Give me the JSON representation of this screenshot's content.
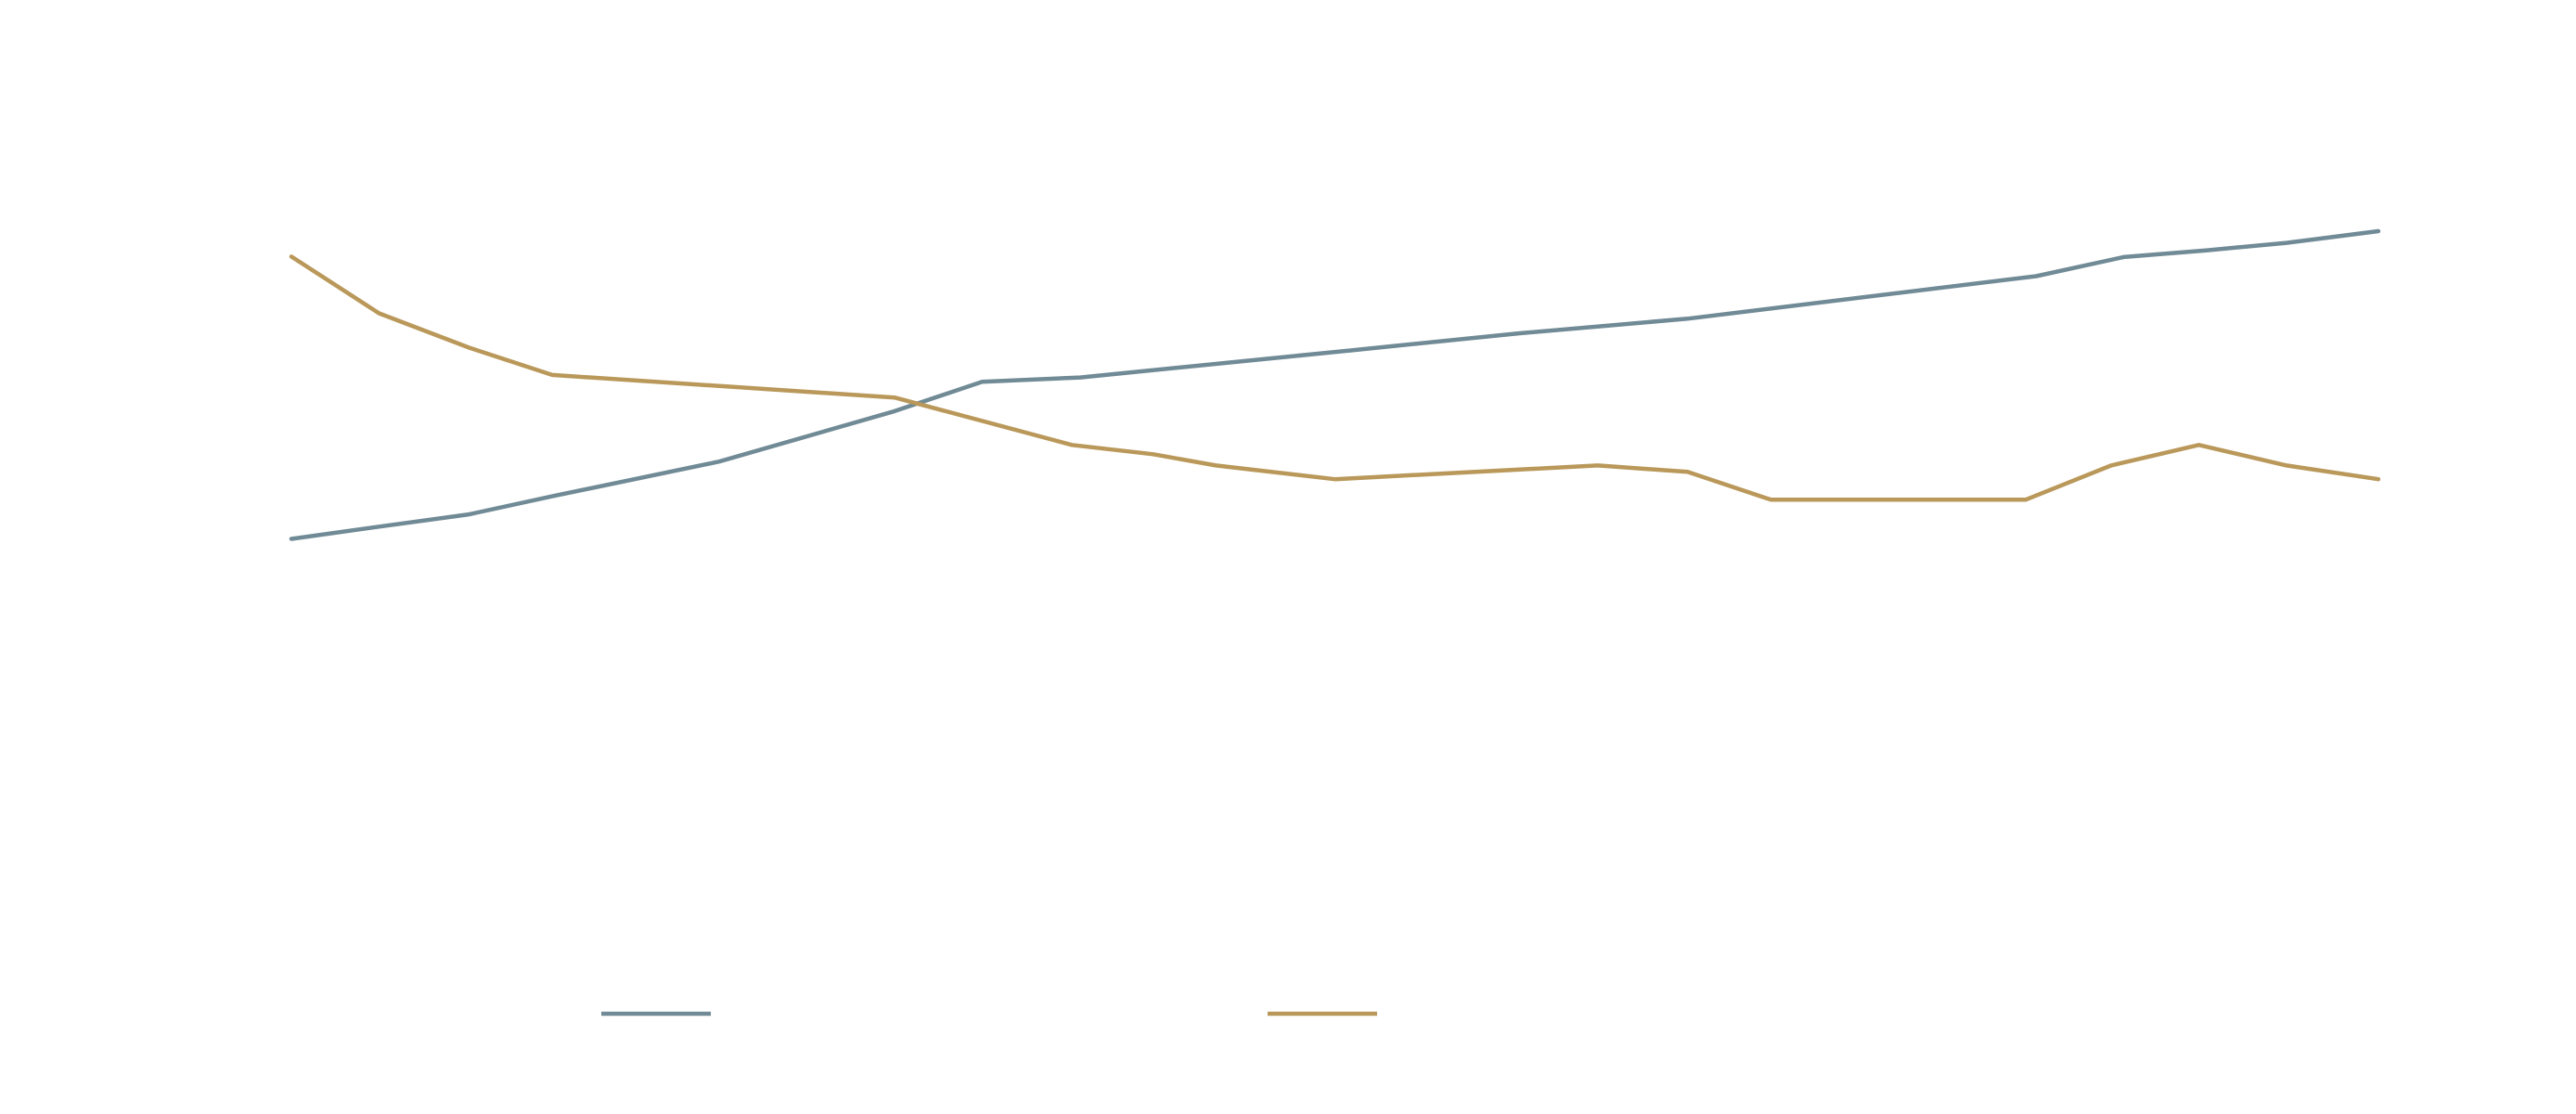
{
  "chart_data": {
    "type": "line",
    "title": "",
    "xlabel": "",
    "ylabel": "",
    "grid": false,
    "legend_placement": "bottom-center",
    "xlim": [
      0,
      100
    ],
    "ylim": [
      0,
      100
    ],
    "series": [
      {
        "color": "#708a96",
        "x": [
          0,
          4.2,
          8.5,
          12.6,
          20.5,
          28.9,
          33.1,
          37.8,
          50.7,
          58.8,
          66.9,
          83.6,
          87.8,
          91.8,
          95.6,
          100
        ],
        "y": [
          37.1,
          39.6,
          42.1,
          45.9,
          52.9,
          63.2,
          69.2,
          70.1,
          75.6,
          79.1,
          82.1,
          90.8,
          94.7,
          96.1,
          97.6,
          100
        ]
      },
      {
        "color": "#b9985a",
        "x": [
          0,
          4.2,
          8.5,
          12.5,
          28.9,
          37.4,
          41.3,
          44.3,
          50.0,
          62.6,
          66.9,
          70.9,
          83.1,
          87.2,
          91.4,
          95.6,
          100
        ],
        "y": [
          94.8,
          83.2,
          76.2,
          70.6,
          66.0,
          56.3,
          54.4,
          52.1,
          49.3,
          52.1,
          50.8,
          45.1,
          45.1,
          52.1,
          56.3,
          52.1,
          49.3
        ]
      }
    ]
  }
}
